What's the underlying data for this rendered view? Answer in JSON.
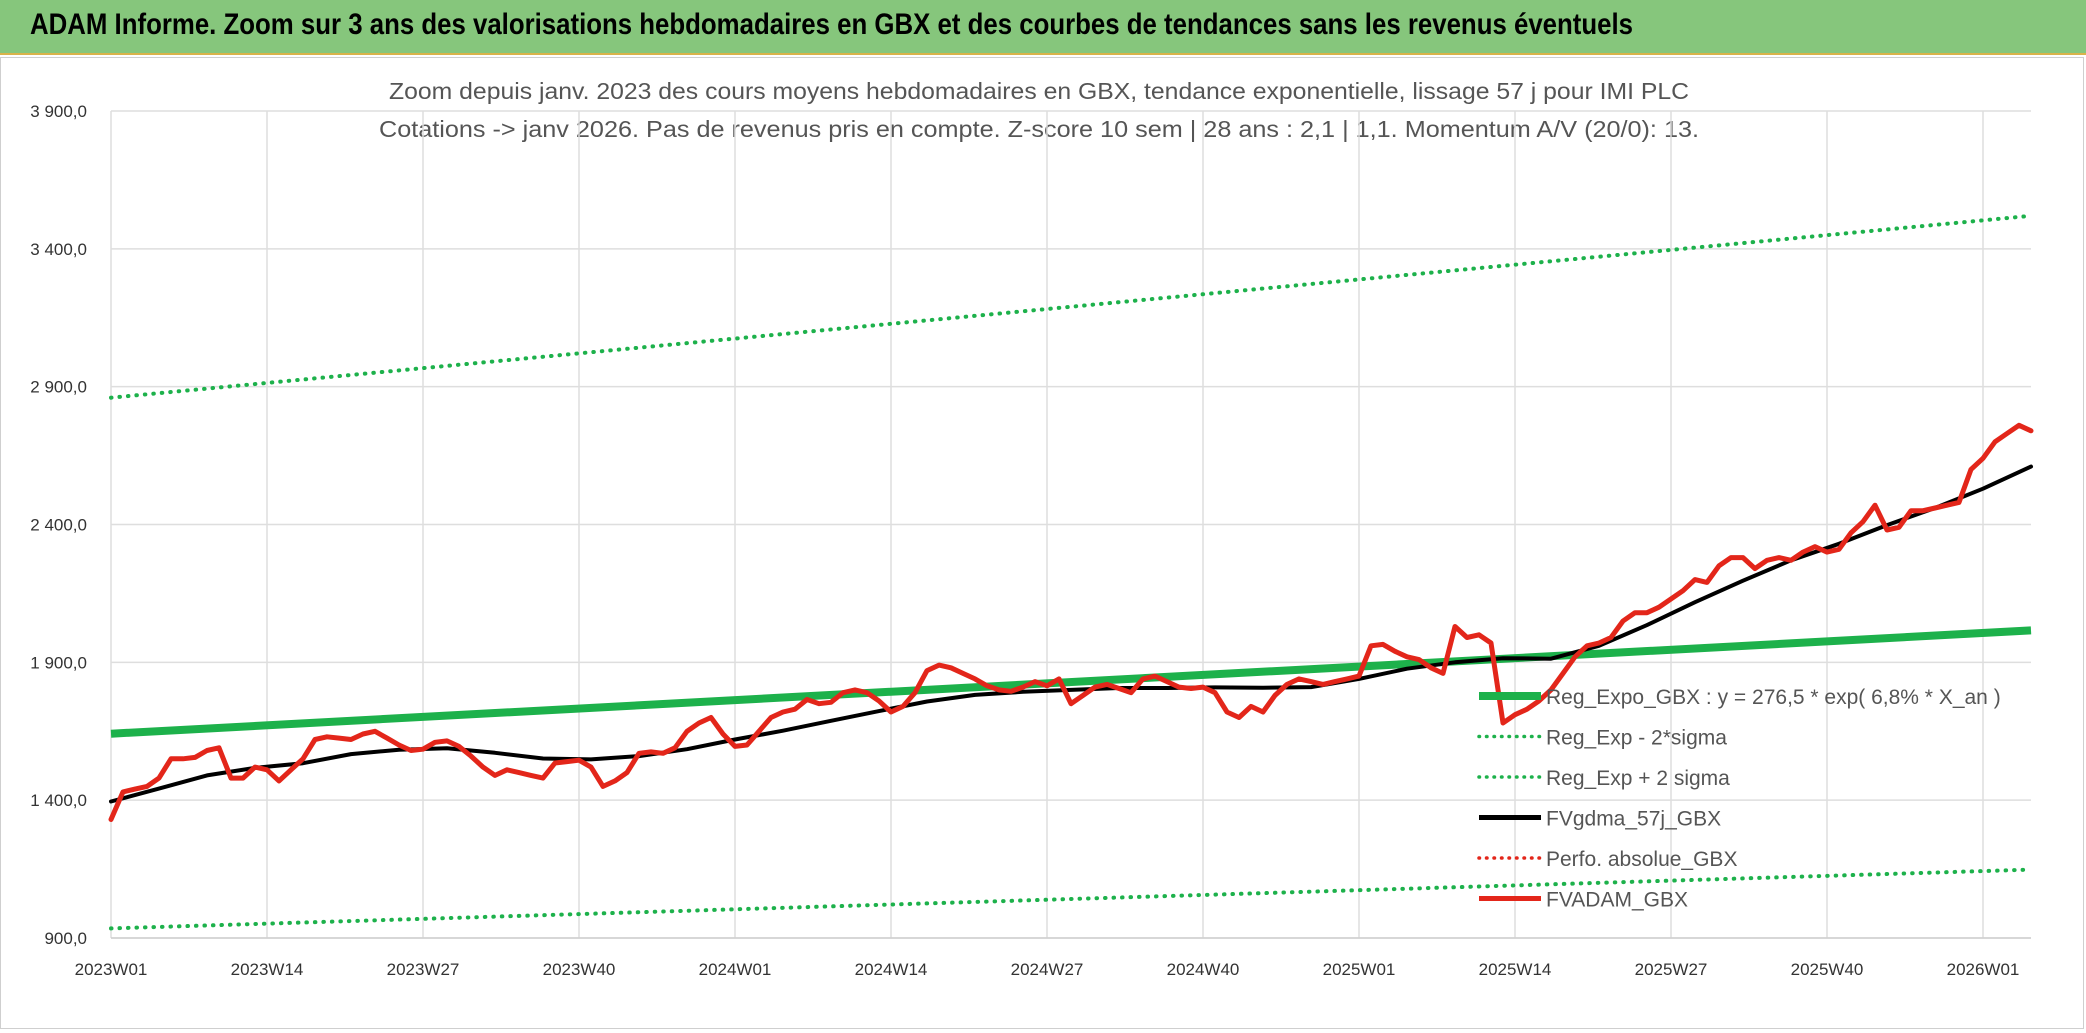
{
  "header": {
    "banner_title": "ADAM Informe. Zoom sur 3 ans des valorisations hebdomadaires en GBX et des courbes de tendances sans les revenus éventuels"
  },
  "chart_data": {
    "type": "line",
    "title": "Zoom depuis janv. 2023 des cours moyens hebdomadaires en GBX, tendance exponentielle, lissage 57 j pour IMI PLC",
    "subtitle": "Cotations -> janv 2026. Pas de revenus pris en compte. Z-score 10 sem | 28 ans : 2,1 | 1,1. Momentum A/V (20/0): 13.",
    "xlabel": "",
    "ylabel": "",
    "ylim": [
      900,
      3900
    ],
    "yticks": [
      "900,0",
      "1 400,0",
      "1 900,0",
      "2 400,0",
      "2 900,0",
      "3 400,0",
      "3 900,0"
    ],
    "ytick_values": [
      900,
      1400,
      1900,
      2400,
      2900,
      3400,
      3900
    ],
    "x_tick_labels": [
      "2023W01",
      "2023W14",
      "2023W27",
      "2023W40",
      "2024W01",
      "2024W14",
      "2024W27",
      "2024W40",
      "2025W01",
      "2025W14",
      "2025W27",
      "2025W40",
      "2026W01"
    ],
    "x_tick_week_index": [
      0,
      13,
      26,
      39,
      52,
      65,
      78,
      91,
      104,
      117,
      130,
      143,
      156
    ],
    "weeks_total": 160,
    "grid": true,
    "legend_placement": "bottom-right",
    "series": [
      {
        "name": "Reg_Expo_GBX : y = 276,5 * exp( 6,8% *  X_an )",
        "style": "thick-solid",
        "color": "#1db14b",
        "x": [
          0,
          160
        ],
        "values": [
          1641,
          2016
        ]
      },
      {
        "name": "Reg_Exp - 2*sigma",
        "style": "dotted",
        "color": "#1db14b",
        "x": [
          0,
          160
        ],
        "values": [
          935,
          1148
        ]
      },
      {
        "name": "Reg_Exp + 2 sigma",
        "style": "dotted",
        "color": "#1db14b",
        "x": [
          0,
          160
        ],
        "values": [
          2860,
          3520
        ]
      },
      {
        "name": "FVgdma_57j_GBX",
        "style": "solid",
        "color": "#000000",
        "x": [
          0,
          4,
          8,
          12,
          16,
          20,
          24,
          28,
          32,
          36,
          40,
          44,
          48,
          52,
          56,
          60,
          64,
          68,
          72,
          76,
          80,
          84,
          88,
          92,
          96,
          100,
          104,
          108,
          112,
          116,
          120,
          124,
          128,
          132,
          136,
          140,
          144,
          148,
          152,
          156,
          160
        ],
        "values": [
          1395,
          1442,
          1490,
          1517,
          1534,
          1567,
          1583,
          1588,
          1572,
          1551,
          1548,
          1560,
          1585,
          1620,
          1652,
          1688,
          1723,
          1758,
          1782,
          1793,
          1800,
          1807,
          1807,
          1809,
          1808,
          1810,
          1840,
          1877,
          1900,
          1915,
          1913,
          1960,
          2035,
          2118,
          2196,
          2270,
          2330,
          2398,
          2460,
          2530,
          2610
        ]
      },
      {
        "name": "Perfo. absolue_GBX",
        "style": "dotted",
        "color": "#e3261a",
        "x": [],
        "values": []
      },
      {
        "name": "FVADAM_GBX",
        "style": "solid",
        "color": "#e3261a",
        "x": [
          0,
          1,
          2,
          3,
          4,
          5,
          6,
          7,
          8,
          9,
          10,
          11,
          12,
          13,
          14,
          15,
          16,
          17,
          18,
          19,
          20,
          21,
          22,
          23,
          24,
          25,
          26,
          27,
          28,
          29,
          30,
          31,
          32,
          33,
          34,
          35,
          36,
          37,
          38,
          39,
          40,
          41,
          42,
          43,
          44,
          45,
          46,
          47,
          48,
          49,
          50,
          51,
          52,
          53,
          54,
          55,
          56,
          57,
          58,
          59,
          60,
          61,
          62,
          63,
          64,
          65,
          66,
          67,
          68,
          69,
          70,
          71,
          72,
          73,
          74,
          75,
          76,
          77,
          78,
          79,
          80,
          81,
          82,
          83,
          84,
          85,
          86,
          87,
          88,
          89,
          90,
          91,
          92,
          93,
          94,
          95,
          96,
          97,
          98,
          99,
          100,
          101,
          102,
          103,
          104,
          105,
          106,
          107,
          108,
          109,
          110,
          111,
          112,
          113,
          114,
          115,
          116,
          117,
          118,
          119,
          120,
          121,
          122,
          123,
          124,
          125,
          126,
          127,
          128,
          129,
          130,
          131,
          132,
          133,
          134,
          135,
          136,
          137,
          138,
          139,
          140,
          141,
          142,
          143,
          144,
          145,
          146,
          147,
          148,
          149,
          150,
          151,
          152,
          153,
          154,
          155,
          156,
          157,
          158,
          159,
          160
        ],
        "values": [
          1330,
          1430,
          1440,
          1450,
          1480,
          1550,
          1550,
          1555,
          1580,
          1590,
          1480,
          1480,
          1520,
          1510,
          1470,
          1510,
          1550,
          1620,
          1630,
          1625,
          1620,
          1640,
          1650,
          1625,
          1600,
          1580,
          1585,
          1610,
          1615,
          1595,
          1560,
          1520,
          1490,
          1510,
          1500,
          1490,
          1480,
          1535,
          1540,
          1545,
          1520,
          1450,
          1470,
          1500,
          1570,
          1575,
          1570,
          1590,
          1650,
          1680,
          1700,
          1640,
          1595,
          1600,
          1650,
          1700,
          1720,
          1730,
          1765,
          1750,
          1755,
          1790,
          1800,
          1790,
          1760,
          1720,
          1740,
          1790,
          1870,
          1890,
          1880,
          1860,
          1840,
          1815,
          1800,
          1795,
          1810,
          1830,
          1815,
          1840,
          1750,
          1780,
          1810,
          1820,
          1805,
          1790,
          1840,
          1850,
          1830,
          1810,
          1805,
          1810,
          1790,
          1720,
          1700,
          1740,
          1720,
          1780,
          1820,
          1840,
          1830,
          1820,
          1830,
          1840,
          1850,
          1960,
          1965,
          1940,
          1920,
          1910,
          1880,
          1860,
          2030,
          1990,
          2000,
          1970,
          1680,
          1710,
          1730,
          1760,
          1800,
          1860,
          1920,
          1960,
          1970,
          1990,
          2050,
          2080,
          2080,
          2100,
          2130,
          2160,
          2200,
          2190,
          2250,
          2280,
          2280,
          2240,
          2270,
          2280,
          2270,
          2300,
          2320,
          2300,
          2310,
          2370,
          2410,
          2470,
          2380,
          2390,
          2450,
          2450,
          2460,
          2470,
          2480,
          2600,
          2640,
          2700,
          2730,
          2760,
          2740
        ]
      }
    ]
  }
}
